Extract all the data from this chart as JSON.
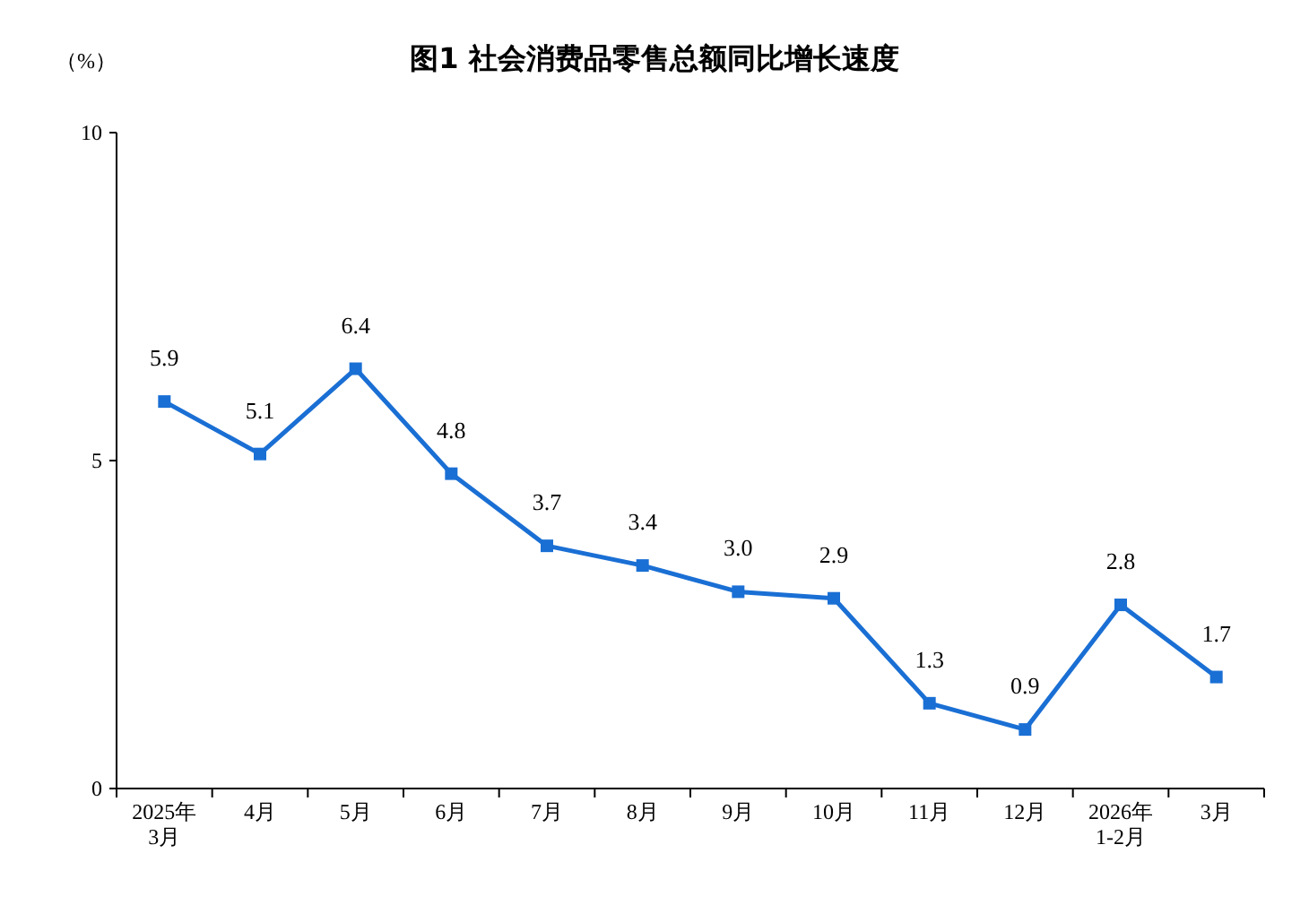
{
  "chart_data": {
    "type": "line",
    "title": "图1  社会消费品零售总额同比增长速度",
    "ylabel": "（%）",
    "categories": [
      "2025年\n3月",
      "4月",
      "5月",
      "6月",
      "7月",
      "8月",
      "9月",
      "10月",
      "11月",
      "12月",
      "2026年\n1-2月",
      "3月"
    ],
    "series": [
      {
        "color": "#1a6fd4",
        "values": [
          5.9,
          5.1,
          6.4,
          4.8,
          3.7,
          3.4,
          3.0,
          2.9,
          1.3,
          0.9,
          2.8,
          1.7
        ],
        "value_labels": [
          "5.9",
          "5.1",
          "6.4",
          "4.8",
          "3.7",
          "3.4",
          "3.0",
          "2.9",
          "1.3",
          "0.9",
          "2.8",
          "1.7"
        ]
      }
    ],
    "ylim": [
      0,
      10
    ],
    "yticks": [
      0,
      5,
      10
    ],
    "grid": false,
    "marker": "square",
    "line_style": "solid"
  }
}
